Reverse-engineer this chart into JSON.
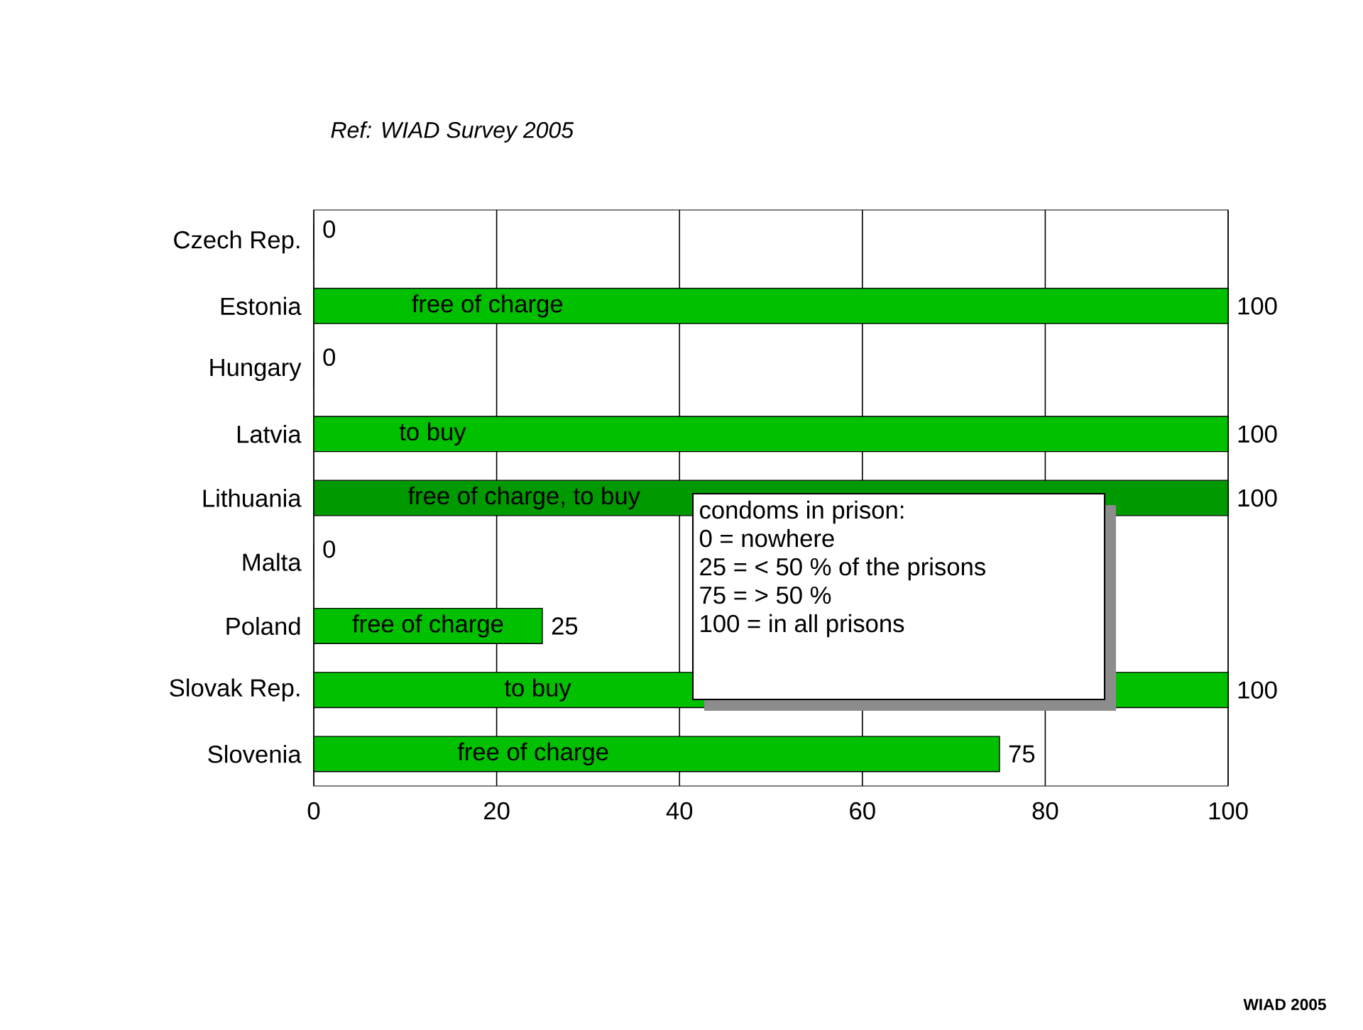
{
  "chart_data": {
    "type": "bar",
    "orientation": "horizontal",
    "subtitle": "Ref: WIAD Survey 2005",
    "categories": [
      "Czech Rep.",
      "Estonia",
      "Hungary",
      "Latvia",
      "Lithuania",
      "Malta",
      "Poland",
      "Slovak Rep.",
      "Slovenia"
    ],
    "values": [
      0,
      100,
      0,
      100,
      100,
      0,
      25,
      100,
      75
    ],
    "colors": [
      "#00c000",
      "#00c000",
      "#00c000",
      "#00c000",
      "#009900",
      "#00c000",
      "#00c000",
      "#00c000",
      "#00c000"
    ],
    "xlim": [
      0,
      100
    ],
    "xticks": [
      0,
      20,
      40,
      60,
      80,
      100
    ],
    "grid": "x",
    "data_labels": true,
    "annotations": [
      "condoms in prison:",
      "0 = nowhere",
      "25 = < 50 % of the prisons",
      "75 = > 50 %",
      "100 = in all prisons",
      "WIAD 2005",
      "free of charge",
      "to buy",
      "free of charge, to buy",
      "free of charge",
      "to buy",
      "free of charge"
    ]
  }
}
